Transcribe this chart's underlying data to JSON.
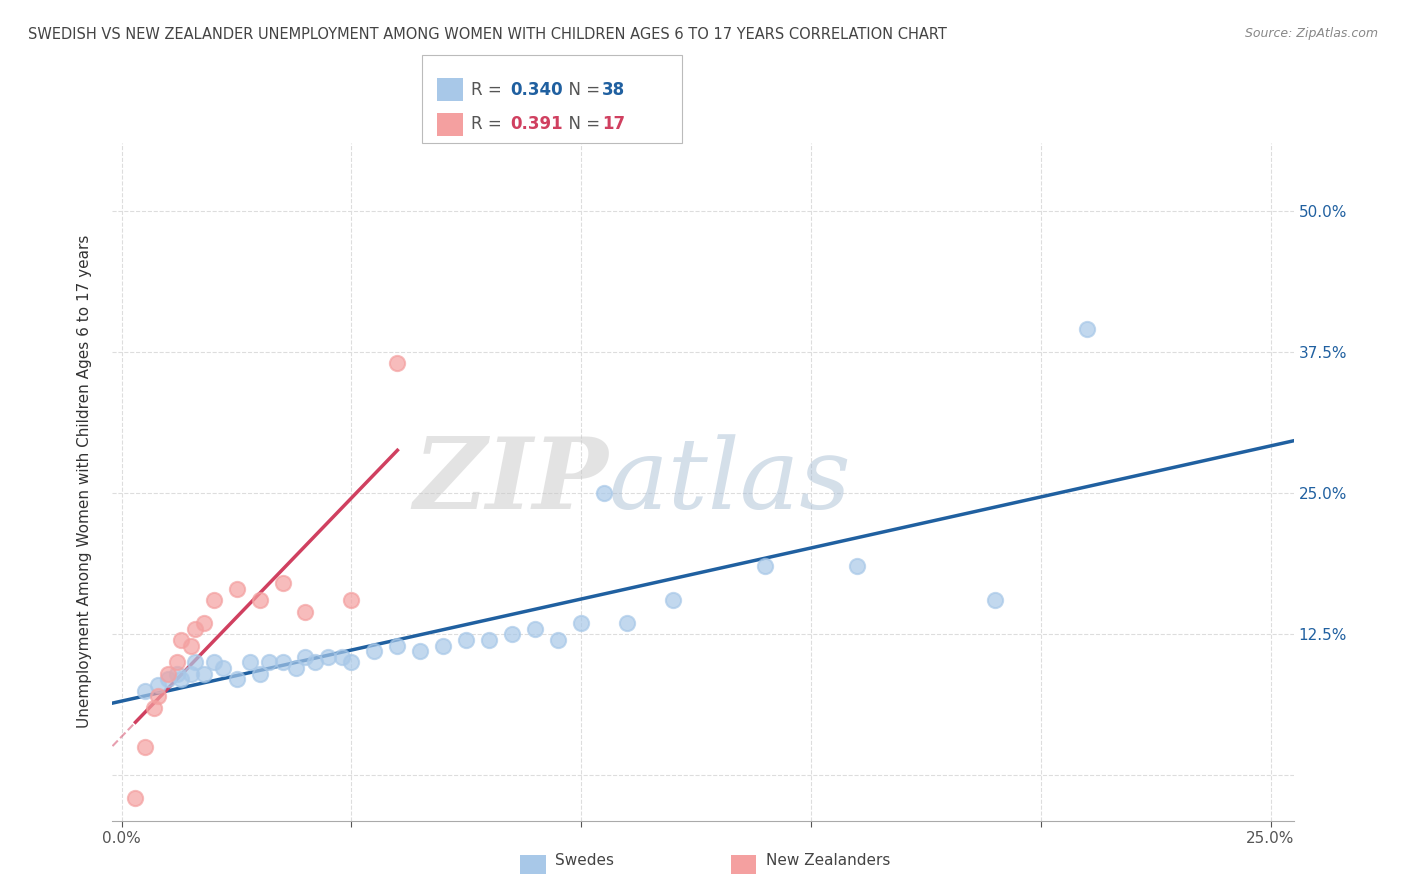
{
  "title": "SWEDISH VS NEW ZEALANDER UNEMPLOYMENT AMONG WOMEN WITH CHILDREN AGES 6 TO 17 YEARS CORRELATION CHART",
  "source": "Source: ZipAtlas.com",
  "ylabel": "Unemployment Among Women with Children Ages 6 to 17 years",
  "xlabel_swedes": "Swedes",
  "xlabel_nz": "New Zealanders",
  "xlim": [
    -0.002,
    0.255
  ],
  "ylim": [
    -0.04,
    0.56
  ],
  "R_swedes": 0.34,
  "N_swedes": 38,
  "R_nz": 0.391,
  "N_nz": 17,
  "swede_color": "#a8c8e8",
  "nz_color": "#f4a0a0",
  "trend_swede_color": "#2060a0",
  "trend_nz_color": "#d04060",
  "background_color": "#ffffff",
  "grid_color": "#dddddd",
  "watermark_zip": "ZIP",
  "watermark_atlas": "atlas",
  "swedes_x": [
    0.005,
    0.008,
    0.01,
    0.012,
    0.013,
    0.015,
    0.016,
    0.018,
    0.02,
    0.022,
    0.025,
    0.028,
    0.03,
    0.032,
    0.035,
    0.038,
    0.04,
    0.042,
    0.045,
    0.048,
    0.05,
    0.055,
    0.06,
    0.065,
    0.07,
    0.075,
    0.08,
    0.085,
    0.09,
    0.095,
    0.1,
    0.105,
    0.11,
    0.12,
    0.14,
    0.16,
    0.19,
    0.21
  ],
  "swedes_y": [
    0.075,
    0.08,
    0.085,
    0.09,
    0.085,
    0.09,
    0.1,
    0.09,
    0.1,
    0.095,
    0.085,
    0.1,
    0.09,
    0.1,
    0.1,
    0.095,
    0.105,
    0.1,
    0.105,
    0.105,
    0.1,
    0.11,
    0.115,
    0.11,
    0.115,
    0.12,
    0.12,
    0.125,
    0.13,
    0.12,
    0.135,
    0.25,
    0.135,
    0.155,
    0.185,
    0.185,
    0.155,
    0.395
  ],
  "nz_x": [
    0.003,
    0.005,
    0.007,
    0.008,
    0.01,
    0.012,
    0.013,
    0.015,
    0.016,
    0.018,
    0.02,
    0.025,
    0.03,
    0.035,
    0.04,
    0.05,
    0.06
  ],
  "nz_y": [
    -0.02,
    0.025,
    0.06,
    0.07,
    0.09,
    0.1,
    0.12,
    0.115,
    0.13,
    0.135,
    0.155,
    0.165,
    0.155,
    0.17,
    0.145,
    0.155,
    0.365
  ]
}
